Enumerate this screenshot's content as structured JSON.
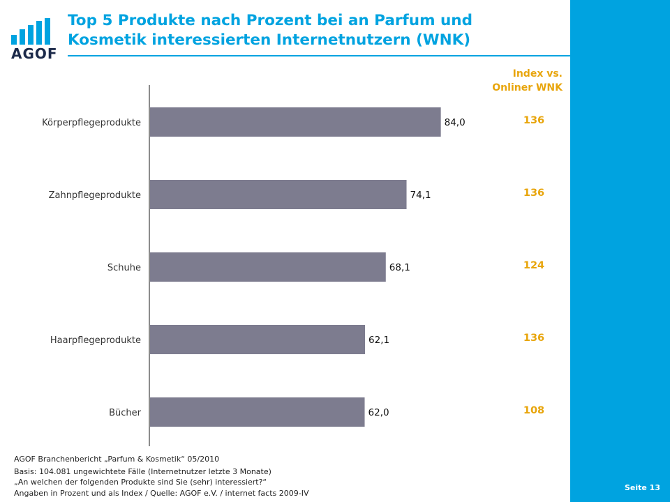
{
  "logo_text": "AGOF",
  "title_line1": "Top 5 Produkte nach Prozent bei an Parfum und",
  "title_line2": "Kosmetik interessierten Internetnutzern (WNK)",
  "index_header_line1": "Index vs.",
  "index_header_line2": "Onliner WNK",
  "chart_data": {
    "type": "bar",
    "orientation": "horizontal",
    "categories": [
      "Körperpflegeprodukte",
      "Zahnpflegeprodukte",
      "Schuhe",
      "Haarpflegeprodukte",
      "Bücher"
    ],
    "values": [
      84.0,
      74.1,
      68.1,
      62.1,
      62.0
    ],
    "value_labels": [
      "84,0",
      "74,1",
      "68,1",
      "62,1",
      "62,0"
    ],
    "index_values": [
      "136",
      "136",
      "124",
      "136",
      "108"
    ],
    "xlim": [
      0,
      100
    ],
    "bar_color": "#7d7c8f",
    "index_color": "#e8a50c",
    "grid": false
  },
  "footer": {
    "line1": "AGOF Branchenbericht „Parfum & Kosmetik“ 05/2010",
    "line2": "Basis: 104.081 ungewichtete Fälle (Internetnutzer letzte 3 Monate)",
    "line3": "„An welchen der folgenden Produkte sind Sie (sehr) interessiert?“",
    "line4": "Angaben in Prozent und als Index / Quelle: AGOF e.V. / internet facts 2009-IV"
  },
  "page_number": "Seite 13",
  "colors": {
    "accent": "#00a3e0",
    "title": "#00a3e0",
    "index": "#e8a50c",
    "bar": "#7d7c8f"
  }
}
